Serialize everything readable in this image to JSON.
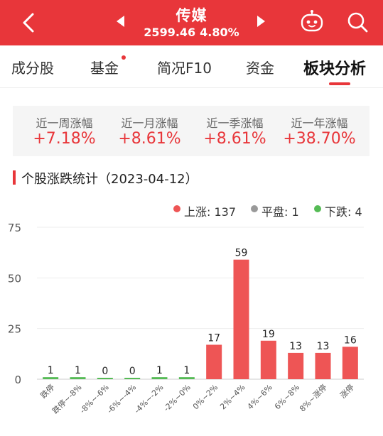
{
  "header": {
    "title": "传媒",
    "index_value": "2599.46",
    "change_pct": "4.80%",
    "colors": {
      "background": "#e8363a",
      "text": "#ffffff"
    },
    "icons": [
      "back-icon",
      "prev-arrow-icon",
      "next-arrow-icon",
      "robot-icon",
      "search-icon"
    ]
  },
  "tabs": [
    {
      "label": "成分股",
      "active": false,
      "dot": false
    },
    {
      "label": "基金",
      "active": false,
      "dot": true
    },
    {
      "label": "简况F10",
      "active": false,
      "dot": false
    },
    {
      "label": "资金",
      "active": false,
      "dot": false
    },
    {
      "label": "板块分析",
      "active": true,
      "dot": false
    }
  ],
  "stats": [
    {
      "label": "近一周涨幅",
      "value": "+7.18%"
    },
    {
      "label": "近一月涨幅",
      "value": "+8.61%"
    },
    {
      "label": "近一季涨幅",
      "value": "+8.61%"
    },
    {
      "label": "近一年涨幅",
      "value": "+38.70%"
    }
  ],
  "section": {
    "title": "个股涨跌统计（2023-04-12）"
  },
  "legend": [
    {
      "label": "上涨: 137",
      "color": "#ee5555"
    },
    {
      "label": "平盘: 1",
      "color": "#999999"
    },
    {
      "label": "下跌: 4",
      "color": "#55bb55"
    }
  ],
  "chart_data": {
    "type": "bar",
    "categories": [
      "跌停",
      "跌停~-8%",
      "-8%~-6%",
      "-6%~-4%",
      "-4%~-2%",
      "-2%~0%",
      "0%~2%",
      "2%~4%",
      "4%~6%",
      "6%~8%",
      "8%~涨停",
      "涨停"
    ],
    "values": [
      1,
      1,
      0,
      0,
      1,
      1,
      17,
      59,
      19,
      13,
      13,
      16
    ],
    "bar_colors": [
      "#55bb55",
      "#55bb55",
      "#55bb55",
      "#55bb55",
      "#55bb55",
      "#55bb55",
      "#ee5555",
      "#ee5555",
      "#ee5555",
      "#ee5555",
      "#ee5555",
      "#ee5555"
    ],
    "yticks": [
      0,
      25,
      50,
      75
    ],
    "ylim": [
      0,
      75
    ],
    "grid": true,
    "legend_position": "top-right",
    "data_labels": true
  }
}
